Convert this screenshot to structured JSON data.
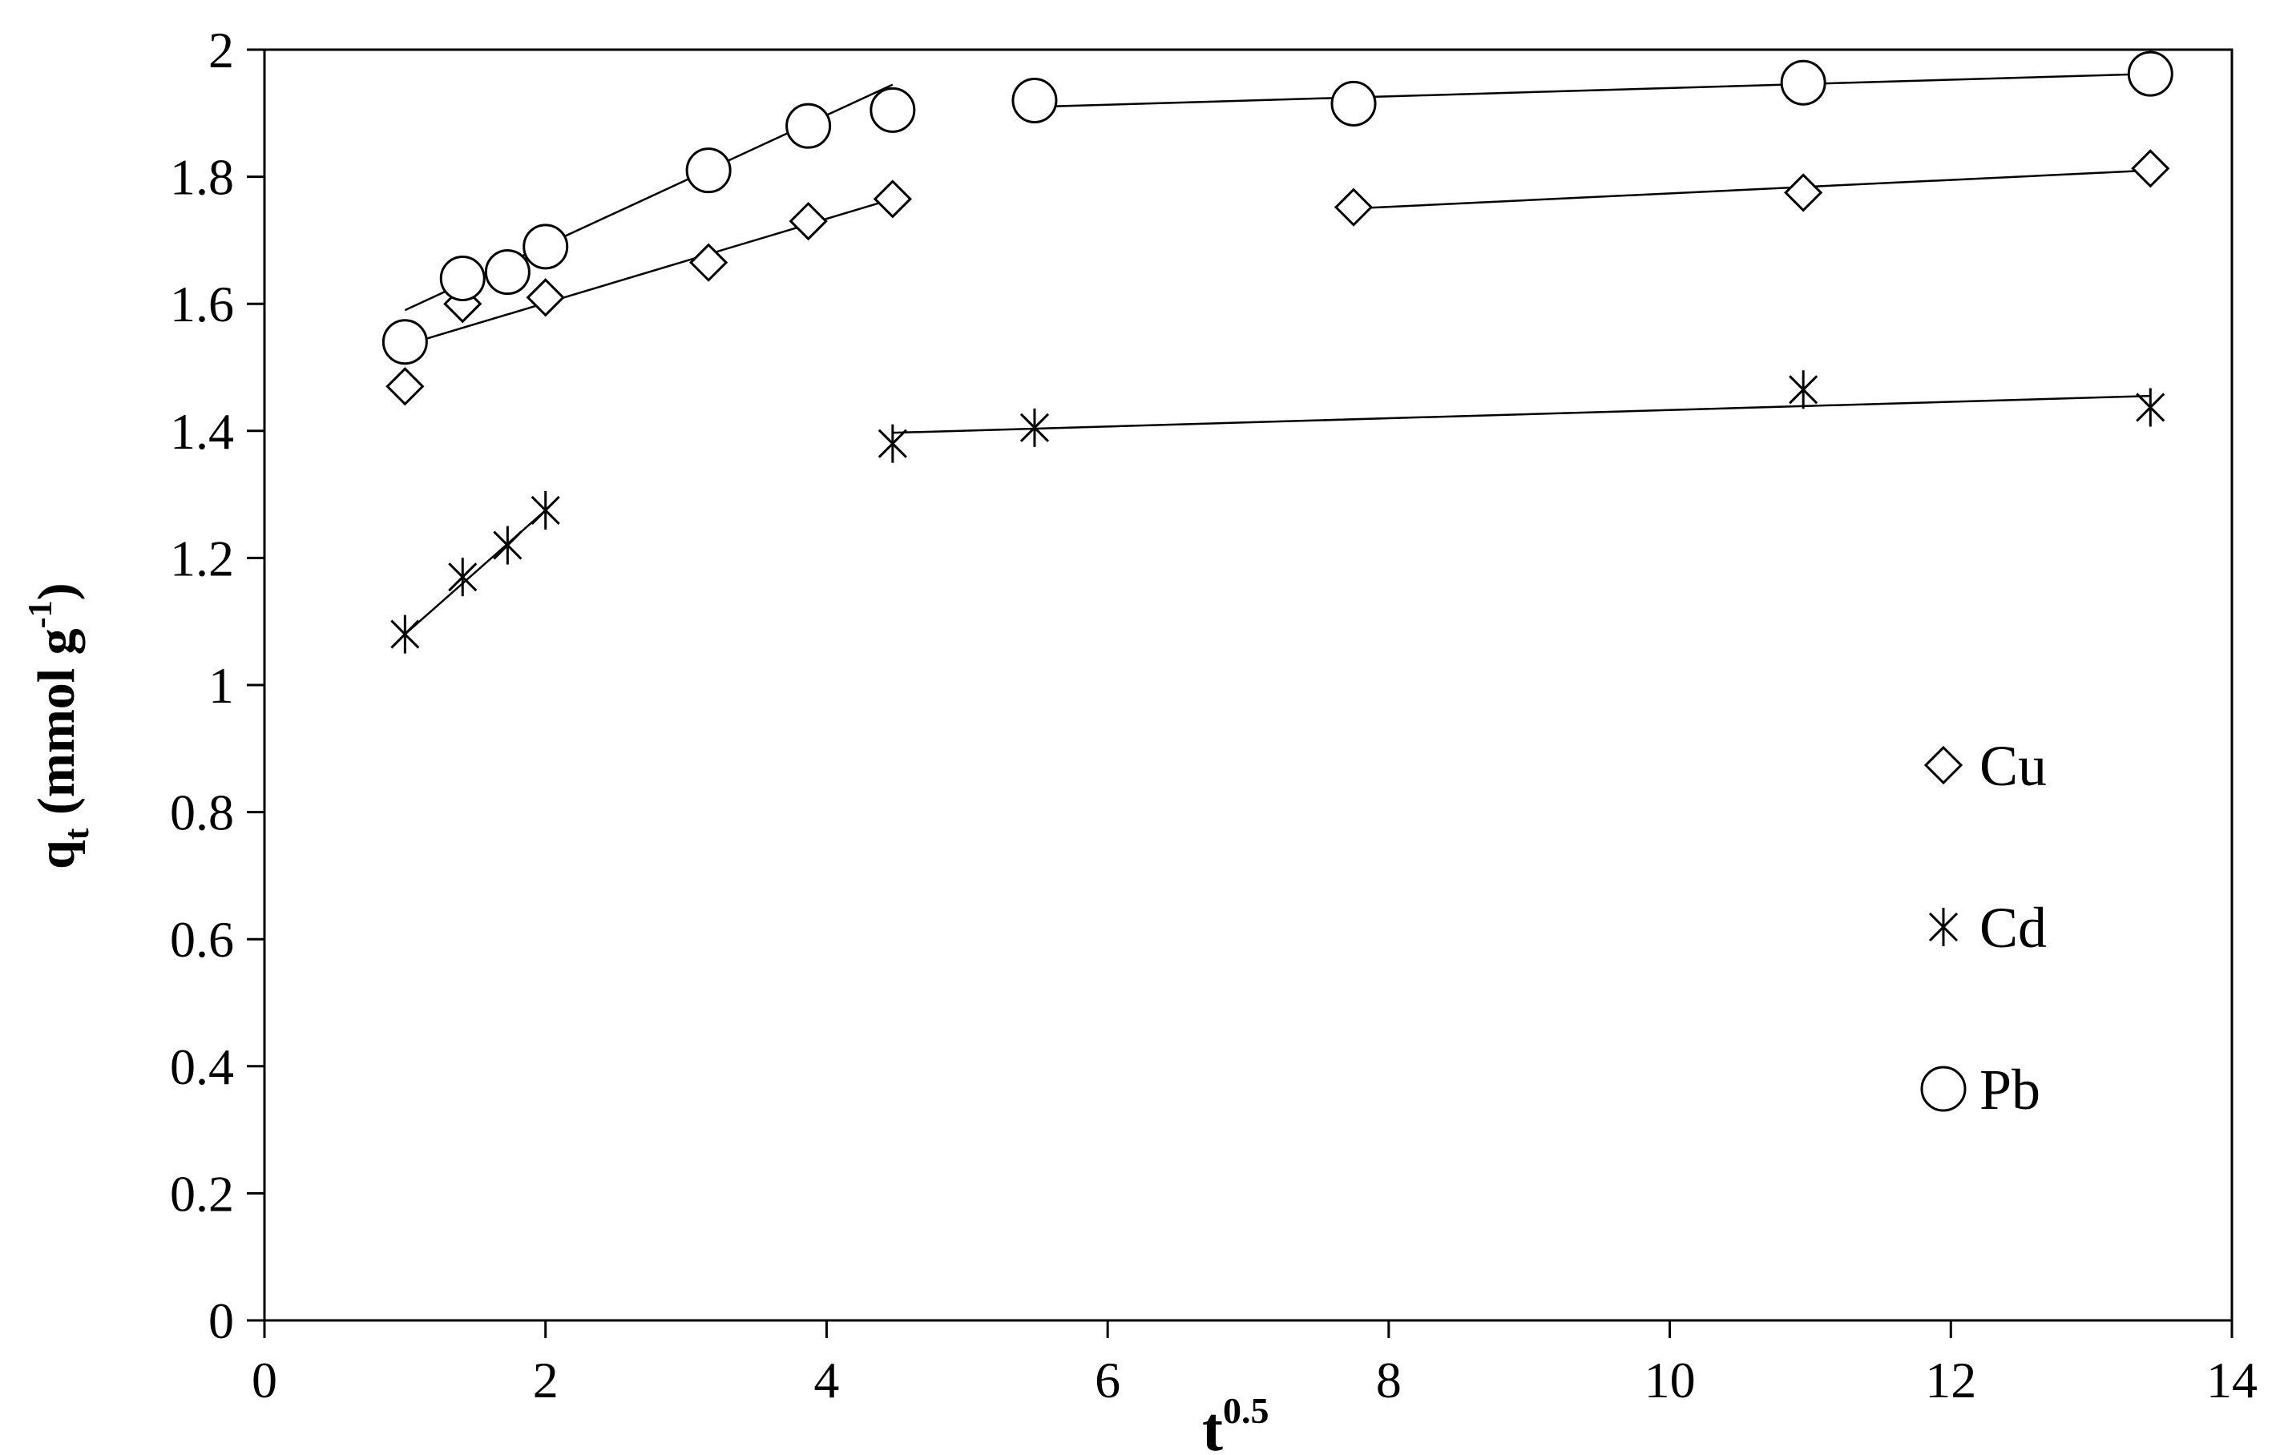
{
  "chart_data": {
    "type": "scatter",
    "xlabel": {
      "base": "t",
      "sup": "0.5"
    },
    "ylabel": {
      "base": "q",
      "sub": "t",
      "unit_prefix": " (mmol g",
      "unit_sup": "-1",
      "unit_suffix": ")"
    },
    "xlim": [
      0,
      14
    ],
    "ylim": [
      0,
      2
    ],
    "xticks": [
      0,
      2,
      4,
      6,
      8,
      10,
      12,
      14
    ],
    "yticks": [
      0,
      0.2,
      0.4,
      0.6,
      0.8,
      1,
      1.2,
      1.4,
      1.6,
      1.8,
      2
    ],
    "xtick_labels": [
      "0",
      "2",
      "4",
      "6",
      "8",
      "10",
      "12",
      "14"
    ],
    "ytick_labels": [
      "0",
      "0.2",
      "0.4",
      "0.6",
      "0.8",
      "1",
      "1.2",
      "1.4",
      "1.6",
      "1.8",
      "2"
    ],
    "grid": false,
    "legend_position": "right",
    "series": [
      {
        "name": "Cu",
        "marker": "diamond",
        "points": [
          [
            1.0,
            1.47
          ],
          [
            1.41,
            1.6
          ],
          [
            2.0,
            1.61
          ],
          [
            3.16,
            1.665
          ],
          [
            3.87,
            1.73
          ],
          [
            4.47,
            1.765
          ],
          [
            7.75,
            1.752
          ],
          [
            10.95,
            1.775
          ],
          [
            13.42,
            1.813
          ]
        ],
        "fit_lines": [
          [
            [
              1.0,
              1.535
            ],
            [
              4.47,
              1.765
            ]
          ],
          [
            [
              7.75,
              1.75
            ],
            [
              13.42,
              1.81
            ]
          ]
        ]
      },
      {
        "name": "Cd",
        "marker": "asterisk",
        "points": [
          [
            1.0,
            1.08
          ],
          [
            1.41,
            1.17
          ],
          [
            1.73,
            1.22
          ],
          [
            2.0,
            1.275
          ],
          [
            4.47,
            1.38
          ],
          [
            5.48,
            1.405
          ],
          [
            10.95,
            1.465
          ],
          [
            13.42,
            1.437
          ]
        ],
        "fit_lines": [
          [
            [
              1.0,
              1.08
            ],
            [
              2.0,
              1.275
            ]
          ],
          [
            [
              4.47,
              1.397
            ],
            [
              13.42,
              1.455
            ]
          ]
        ]
      },
      {
        "name": "Pb",
        "marker": "circle",
        "points": [
          [
            1.0,
            1.54
          ],
          [
            1.41,
            1.64
          ],
          [
            1.73,
            1.65
          ],
          [
            2.0,
            1.69
          ],
          [
            3.16,
            1.81
          ],
          [
            3.87,
            1.88
          ],
          [
            4.47,
            1.905
          ],
          [
            5.48,
            1.92
          ],
          [
            7.75,
            1.915
          ],
          [
            10.95,
            1.948
          ],
          [
            13.42,
            1.962
          ]
        ],
        "fit_lines": [
          [
            [
              1.0,
              1.59
            ],
            [
              4.47,
              1.945
            ]
          ],
          [
            [
              5.48,
              1.91
            ],
            [
              13.42,
              1.962
            ]
          ]
        ]
      }
    ]
  }
}
